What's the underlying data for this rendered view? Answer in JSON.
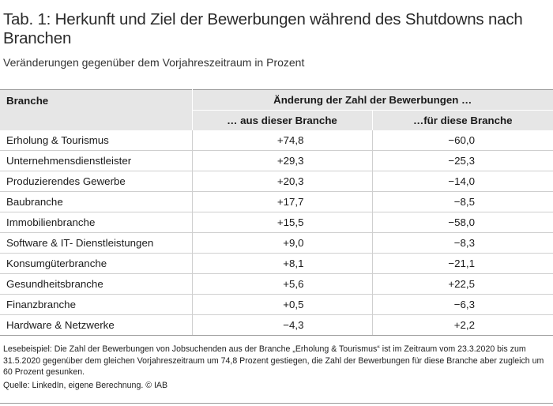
{
  "title": "Tab. 1: Herkunft und Ziel der Bewerbungen während des Shutdowns nach Branchen",
  "subtitle": "Veränderungen gegenüber dem Vorjahreszeitraum in Prozent",
  "table": {
    "col_branche": "Branche",
    "col_group": "Änderung der Zahl der Bewerbungen …",
    "col_from": "… aus dieser Branche",
    "col_to": "…für diese Branche",
    "rows": [
      {
        "branche": "Erholung & Tourismus",
        "from": "+74,8",
        "to": "−60,0"
      },
      {
        "branche": "Unternehmensdienstleister",
        "from": "+29,3",
        "to": "−25,3"
      },
      {
        "branche": "Produzierendes Gewerbe",
        "from": "+20,3",
        "to": "−14,0"
      },
      {
        "branche": "Baubranche",
        "from": "+17,7",
        "to": "−8,5"
      },
      {
        "branche": "Immobilienbranche",
        "from": "+15,5",
        "to": "−58,0"
      },
      {
        "branche": "Software & IT- Dienstleistungen",
        "from": "+9,0",
        "to": "−8,3"
      },
      {
        "branche": "Konsumgüterbranche",
        "from": "+8,1",
        "to": "−21,1"
      },
      {
        "branche": "Gesundheitsbranche",
        "from": "+5,6",
        "to": "+22,5"
      },
      {
        "branche": "Finanzbranche",
        "from": "+0,5",
        "to": "−6,3"
      },
      {
        "branche": "Hardware & Netzwerke",
        "from": "−4,3",
        "to": "+2,2"
      }
    ]
  },
  "note": "Lesebeispiel: Die Zahl der Bewerbungen von Jobsuchenden aus der Branche „Erholung & Tourismus“ ist im Zeitraum vom 23.3.2020 bis zum 31.5.2020 gegenüber dem gleichen Vorjahreszeitraum um 74,8 Prozent gestiegen, die Zahl der Bewerbungen für diese Branche aber zugleich um 60 Prozent gesunken.",
  "source": "Quelle: LinkedIn, eigene Berechnung. © IAB"
}
